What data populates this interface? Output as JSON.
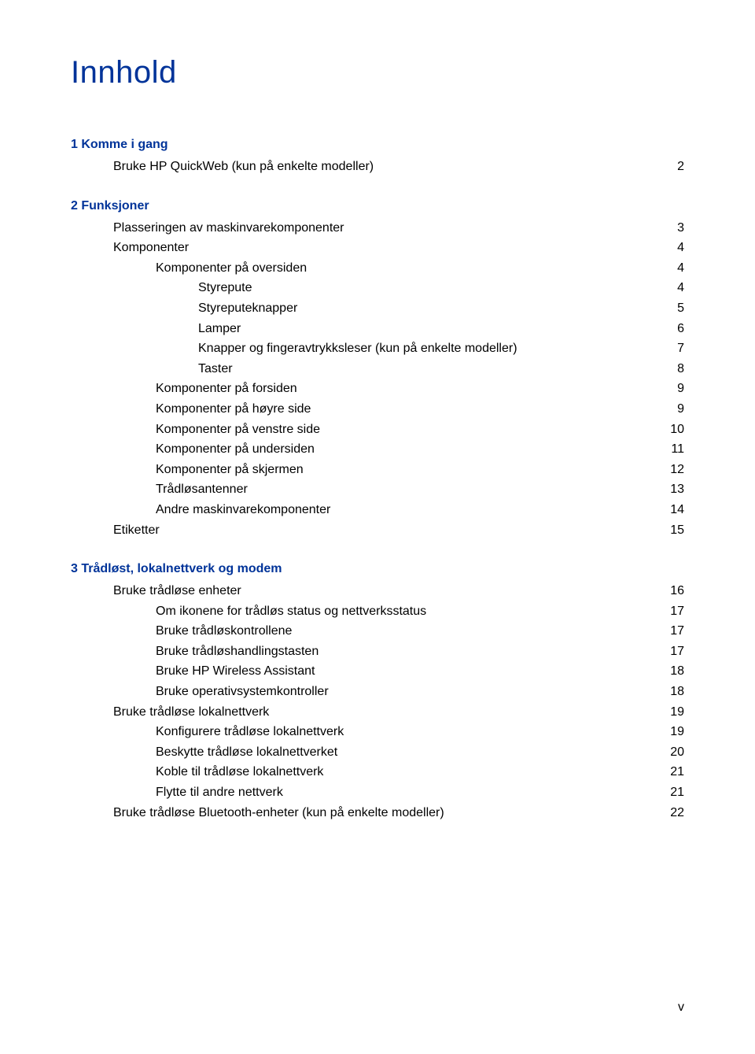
{
  "title": "Innhold",
  "colors": {
    "heading": "#003399",
    "text": "#000000",
    "background": "#ffffff"
  },
  "typography": {
    "title_fontsize": 40,
    "heading_fontsize": 16,
    "body_fontsize": 16
  },
  "page_number": "v",
  "sections": [
    {
      "heading": "1  Komme i gang",
      "entries": [
        {
          "label": "Bruke HP QuickWeb (kun på enkelte modeller)",
          "page": "2",
          "indent": 1
        }
      ]
    },
    {
      "heading": "2  Funksjoner",
      "entries": [
        {
          "label": "Plasseringen av maskinvarekomponenter",
          "page": "3",
          "indent": 1
        },
        {
          "label": "Komponenter",
          "page": "4",
          "indent": 1
        },
        {
          "label": "Komponenter på oversiden",
          "page": "4",
          "indent": 2
        },
        {
          "label": "Styrepute",
          "page": "4",
          "indent": 3
        },
        {
          "label": "Styreputeknapper",
          "page": "5",
          "indent": 3
        },
        {
          "label": "Lamper",
          "page": "6",
          "indent": 3
        },
        {
          "label": "Knapper og fingeravtrykksleser (kun på enkelte modeller)",
          "page": "7",
          "indent": 3
        },
        {
          "label": "Taster",
          "page": "8",
          "indent": 3
        },
        {
          "label": "Komponenter på forsiden",
          "page": "9",
          "indent": 2
        },
        {
          "label": "Komponenter på høyre side",
          "page": "9",
          "indent": 2
        },
        {
          "label": "Komponenter på venstre side",
          "page": "10",
          "indent": 2
        },
        {
          "label": "Komponenter på undersiden",
          "page": "11",
          "indent": 2
        },
        {
          "label": "Komponenter på skjermen",
          "page": "12",
          "indent": 2
        },
        {
          "label": "Trådløsantenner",
          "page": "13",
          "indent": 2
        },
        {
          "label": "Andre maskinvarekomponenter",
          "page": "14",
          "indent": 2
        },
        {
          "label": "Etiketter",
          "page": "15",
          "indent": 1
        }
      ]
    },
    {
      "heading": "3  Trådløst, lokalnettverk og modem",
      "entries": [
        {
          "label": "Bruke trådløse enheter",
          "page": "16",
          "indent": 1
        },
        {
          "label": "Om ikonene for trådløs status og nettverksstatus",
          "page": "17",
          "indent": 2
        },
        {
          "label": "Bruke trådløskontrollene",
          "page": "17",
          "indent": 2
        },
        {
          "label": "Bruke trådløshandlingstasten",
          "page": "17",
          "indent": 2
        },
        {
          "label": "Bruke HP Wireless Assistant",
          "page": "18",
          "indent": 2
        },
        {
          "label": "Bruke operativsystemkontroller",
          "page": "18",
          "indent": 2
        },
        {
          "label": "Bruke trådløse lokalnettverk",
          "page": "19",
          "indent": 1
        },
        {
          "label": "Konfigurere trådløse lokalnettverk",
          "page": "19",
          "indent": 2
        },
        {
          "label": "Beskytte trådløse lokalnettverket",
          "page": "20",
          "indent": 2
        },
        {
          "label": "Koble til trådløse lokalnettverk",
          "page": "21",
          "indent": 2
        },
        {
          "label": "Flytte til andre nettverk",
          "page": "21",
          "indent": 2
        },
        {
          "label": "Bruke trådløse Bluetooth-enheter (kun på enkelte modeller)",
          "page": "22",
          "indent": 1
        }
      ]
    }
  ]
}
